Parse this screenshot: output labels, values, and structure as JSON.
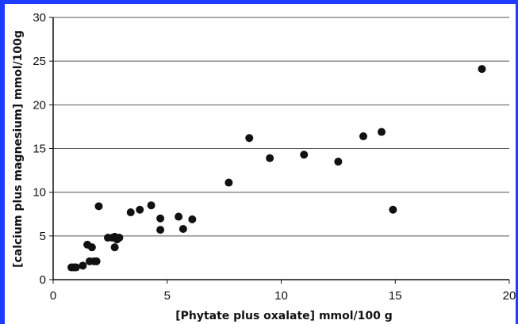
{
  "chart_data": {
    "type": "scatter",
    "xlabel": "[Phytate plus oxalate] mmol/100 g",
    "ylabel": "[calcium plus magnesium] mmol/100g",
    "xlim": [
      0,
      20
    ],
    "ylim": [
      0,
      30
    ],
    "x_ticks": [
      "0",
      "5",
      "10",
      "15",
      "20"
    ],
    "y_ticks": [
      "0",
      "5",
      "10",
      "15",
      "20",
      "25",
      "30"
    ],
    "grid": "horizontal",
    "marker_color": "#111111",
    "points": [
      {
        "x": 0.8,
        "y": 1.4
      },
      {
        "x": 0.9,
        "y": 1.4
      },
      {
        "x": 1.0,
        "y": 1.4
      },
      {
        "x": 1.3,
        "y": 1.6
      },
      {
        "x": 1.5,
        "y": 4.0
      },
      {
        "x": 1.7,
        "y": 3.7
      },
      {
        "x": 1.6,
        "y": 2.1
      },
      {
        "x": 1.8,
        "y": 2.1
      },
      {
        "x": 1.9,
        "y": 2.1
      },
      {
        "x": 2.0,
        "y": 8.4
      },
      {
        "x": 2.4,
        "y": 4.8
      },
      {
        "x": 2.6,
        "y": 4.8
      },
      {
        "x": 2.7,
        "y": 3.7
      },
      {
        "x": 2.7,
        "y": 4.9
      },
      {
        "x": 2.8,
        "y": 4.6
      },
      {
        "x": 2.9,
        "y": 4.8
      },
      {
        "x": 3.4,
        "y": 7.7
      },
      {
        "x": 3.8,
        "y": 8.0
      },
      {
        "x": 4.3,
        "y": 8.5
      },
      {
        "x": 4.7,
        "y": 7.0
      },
      {
        "x": 4.7,
        "y": 5.7
      },
      {
        "x": 5.5,
        "y": 7.2
      },
      {
        "x": 5.7,
        "y": 5.8
      },
      {
        "x": 6.1,
        "y": 6.9
      },
      {
        "x": 7.7,
        "y": 11.1
      },
      {
        "x": 8.6,
        "y": 16.2
      },
      {
        "x": 9.5,
        "y": 13.9
      },
      {
        "x": 11.0,
        "y": 14.3
      },
      {
        "x": 12.5,
        "y": 13.5
      },
      {
        "x": 13.6,
        "y": 16.4
      },
      {
        "x": 14.4,
        "y": 16.9
      },
      {
        "x": 14.9,
        "y": 8.0
      },
      {
        "x": 18.8,
        "y": 24.1
      }
    ]
  }
}
